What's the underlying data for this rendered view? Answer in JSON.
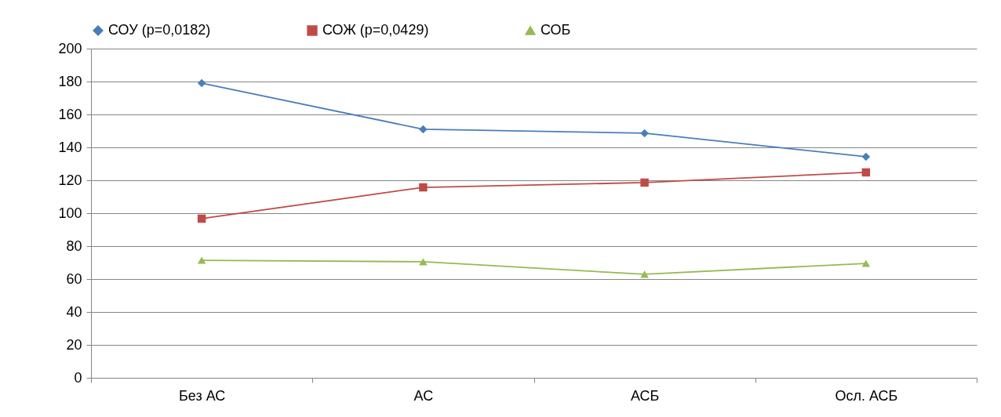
{
  "chart_data": {
    "type": "line",
    "categories": [
      "Без АС",
      "АС",
      "АСБ",
      "Осл. АСБ"
    ],
    "series": [
      {
        "name": "СОУ (p=0,0182)",
        "color": "#4a7ebb",
        "marker": "diamond",
        "values": [
          179,
          151,
          148.6,
          134.3
        ]
      },
      {
        "name": "СОЖ (p=0,0429)",
        "color": "#be4b48",
        "marker": "square",
        "values": [
          96.7,
          115.7,
          118.6,
          124.8
        ]
      },
      {
        "name": "СОБ",
        "color": "#98b954",
        "marker": "triangle",
        "values": [
          71.4,
          70.5,
          62.9,
          69.5
        ]
      }
    ],
    "ylim": [
      0,
      200
    ],
    "yticks": [
      0,
      20,
      40,
      60,
      80,
      100,
      120,
      140,
      160,
      180,
      200
    ],
    "grid": "y",
    "legend": "top",
    "line_style": "solid"
  }
}
